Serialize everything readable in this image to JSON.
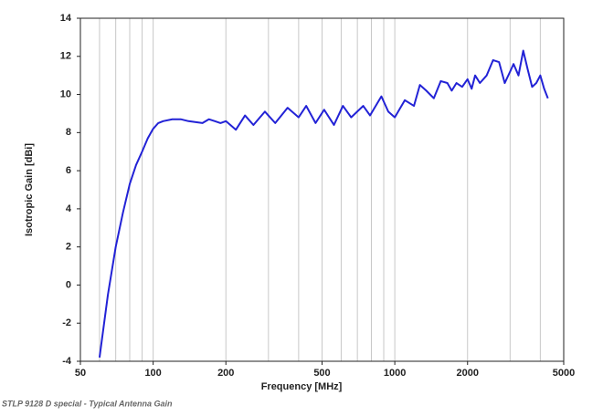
{
  "chart_data": {
    "type": "line",
    "x_scale": "log",
    "xlabel": "Frequency [MHz]",
    "ylabel": "Isotropic Gain [dBi]",
    "caption": "STLP 9128 D special - Typical Antenna Gain",
    "xlim": [
      50,
      5000
    ],
    "ylim": [
      -4,
      14
    ],
    "xticks": [
      50,
      100,
      200,
      500,
      1000,
      2000,
      5000
    ],
    "xgrid": [
      60,
      70,
      80,
      90,
      100,
      200,
      300,
      400,
      500,
      600,
      700,
      800,
      900,
      1000,
      2000,
      3000,
      4000
    ],
    "yticks": [
      -4,
      -2,
      0,
      2,
      4,
      6,
      8,
      10,
      12,
      14
    ],
    "x": [
      60,
      65,
      70,
      75,
      80,
      85,
      90,
      95,
      100,
      105,
      110,
      120,
      130,
      140,
      160,
      170,
      180,
      190,
      200,
      220,
      240,
      260,
      290,
      320,
      360,
      400,
      430,
      470,
      510,
      560,
      610,
      660,
      740,
      790,
      880,
      940,
      1000,
      1100,
      1200,
      1270,
      1350,
      1450,
      1550,
      1650,
      1720,
      1800,
      1900,
      2000,
      2080,
      2150,
      2250,
      2400,
      2550,
      2700,
      2850,
      3000,
      3100,
      3250,
      3400,
      3550,
      3700,
      3850,
      4000,
      4150,
      4300
    ],
    "series": [
      {
        "color": "#2222d6",
        "values": [
          -3.8,
          -0.5,
          2.0,
          3.8,
          5.3,
          6.3,
          7.0,
          7.7,
          8.2,
          8.5,
          8.6,
          8.7,
          8.7,
          8.6,
          8.5,
          8.7,
          8.6,
          8.5,
          8.6,
          8.15,
          8.9,
          8.4,
          9.1,
          8.5,
          9.3,
          8.8,
          9.4,
          8.5,
          9.2,
          8.4,
          9.4,
          8.8,
          9.4,
          8.9,
          9.9,
          9.1,
          8.8,
          9.7,
          9.4,
          10.5,
          10.2,
          9.8,
          10.7,
          10.6,
          10.2,
          10.6,
          10.4,
          10.8,
          10.3,
          11.0,
          10.6,
          11.0,
          11.8,
          11.7,
          10.6,
          11.2,
          11.6,
          11.0,
          12.3,
          11.3,
          10.4,
          10.6,
          11.0,
          10.3,
          9.8
        ]
      }
    ]
  }
}
